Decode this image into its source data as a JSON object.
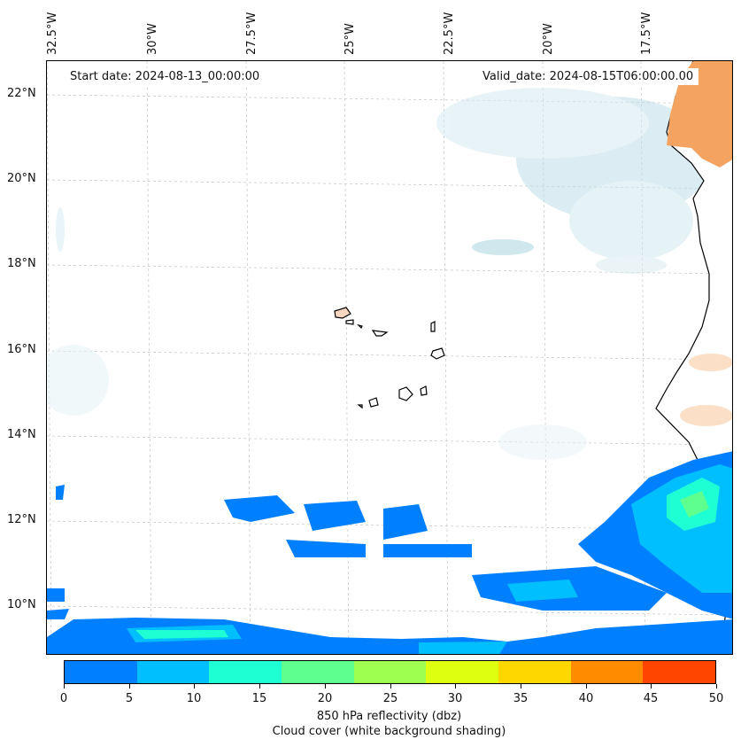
{
  "map": {
    "start_date_label": "Start date: 2024-08-13_00:00:00",
    "valid_date_label": "Valid_date: 2024-08-15T06:00:00.00",
    "lon_labels": [
      "32.5°W",
      "30°W",
      "27.5°W",
      "25°W",
      "22.5°W",
      "20°W",
      "17.5°W"
    ],
    "lat_labels": [
      "22°N",
      "20°N",
      "18°N",
      "16°N",
      "14°N",
      "12°N",
      "10°N"
    ],
    "land_color": "#f4a460",
    "coastline_color": "#000000",
    "gridlines": true
  },
  "colorbar": {
    "ticks": [
      "0",
      "5",
      "10",
      "15",
      "20",
      "25",
      "30",
      "35",
      "40",
      "45",
      "50"
    ],
    "colors": [
      "#007fff",
      "#00bfff",
      "#1fffd4",
      "#5fff8f",
      "#9fff50",
      "#dfff10",
      "#ffd700",
      "#ff8c00",
      "#ff4500"
    ],
    "label_line1": "850 hPa reflectivity (dbz)",
    "label_line2": "Cloud cover (white background shading)"
  }
}
